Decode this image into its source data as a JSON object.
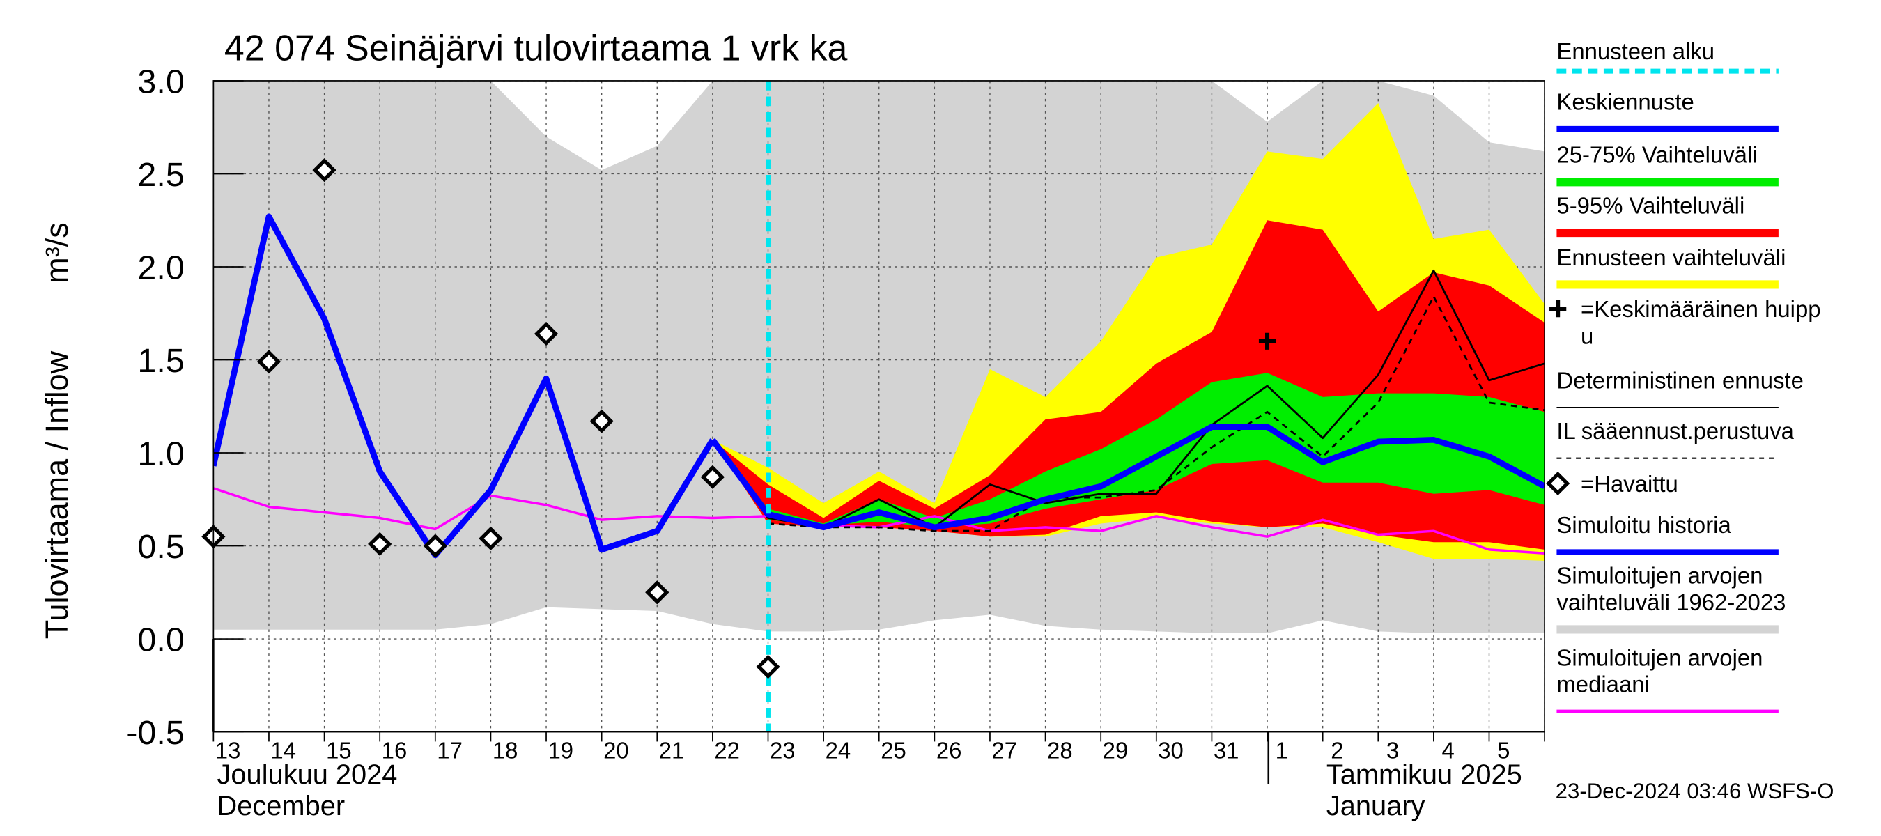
{
  "chart_data": {
    "type": "line",
    "title": "42 074 Seinäjärvi tulovirtaama 1 vrk ka",
    "y_label": "Tulovirtaama / Inflow",
    "y_unit": "m³/s",
    "footer": "23-Dec-2024 03:46 WSFS-O",
    "month_labels": [
      {
        "fi": "Joulukuu  2024",
        "en": "December"
      },
      {
        "fi": "Tammikuu  2025",
        "en": "January"
      }
    ],
    "categories": [
      "13",
      "14",
      "15",
      "16",
      "17",
      "18",
      "19",
      "20",
      "21",
      "22",
      "23",
      "24",
      "25",
      "26",
      "27",
      "28",
      "29",
      "30",
      "31",
      "1",
      "2",
      "3",
      "4",
      "5",
      null
    ],
    "ylim": [
      -0.5,
      3.0
    ],
    "yticks": [
      -0.5,
      {
        "value": 0,
        "label": "0.0"
      },
      0.5,
      {
        "value": 1,
        "label": "1.0"
      },
      1.5,
      {
        "value": 2,
        "label": "2.0"
      },
      2.5,
      {
        "value": 3,
        "label": "3.0"
      }
    ],
    "grid": true,
    "forecast_start": {
      "name": "Ennusteen alku",
      "color": "#00e5ee",
      "at": 10
    },
    "series": [
      {
        "name": [
          "Keskiennuste"
        ],
        "kind": "line",
        "color": "#0000ff",
        "width": 5,
        "values": [
          null,
          null,
          null,
          null,
          null,
          null,
          null,
          null,
          null,
          1.07,
          0.67,
          0.6,
          0.68,
          0.6,
          0.65,
          0.75,
          0.82,
          0.98,
          1.14,
          1.14,
          0.95,
          1.06,
          1.07,
          0.98,
          0.82
        ]
      },
      {
        "name": [
          "25-75% Vaihteluväli"
        ],
        "kind": "band",
        "color": "#00ee00",
        "upper": [
          null,
          null,
          null,
          null,
          null,
          null,
          null,
          null,
          null,
          1.07,
          0.7,
          0.62,
          0.75,
          0.65,
          0.75,
          0.9,
          1.02,
          1.18,
          1.38,
          1.43,
          1.3,
          1.32,
          1.32,
          1.3,
          1.22
        ],
        "lower": [
          null,
          null,
          null,
          null,
          null,
          null,
          null,
          null,
          null,
          1.07,
          0.64,
          0.61,
          0.63,
          0.6,
          0.62,
          0.7,
          0.75,
          0.8,
          0.94,
          0.96,
          0.84,
          0.84,
          0.78,
          0.8,
          0.72
        ]
      },
      {
        "name": [
          "5-95% Vaihteluväli"
        ],
        "kind": "band",
        "color": "#ff0000",
        "upper": [
          null,
          null,
          null,
          null,
          null,
          null,
          null,
          null,
          null,
          1.07,
          0.83,
          0.65,
          0.85,
          0.7,
          0.88,
          1.18,
          1.22,
          1.48,
          1.65,
          2.25,
          2.2,
          1.76,
          1.97,
          1.9,
          1.7
        ],
        "lower": [
          null,
          null,
          null,
          null,
          null,
          null,
          null,
          null,
          null,
          1.07,
          0.62,
          0.6,
          0.6,
          0.58,
          0.55,
          0.56,
          0.66,
          0.68,
          0.63,
          0.6,
          0.62,
          0.56,
          0.52,
          0.52,
          0.48
        ]
      },
      {
        "name": [
          "Ennusteen vaihteluväli"
        ],
        "kind": "band",
        "color": "#ffff00",
        "upper": [
          null,
          null,
          null,
          null,
          null,
          null,
          null,
          null,
          null,
          1.07,
          0.92,
          0.73,
          0.9,
          0.73,
          1.45,
          1.3,
          1.6,
          2.05,
          2.12,
          2.62,
          2.58,
          2.88,
          2.15,
          2.2,
          1.8
        ],
        "lower": [
          null,
          null,
          null,
          null,
          null,
          null,
          null,
          null,
          null,
          1.07,
          0.62,
          0.6,
          0.6,
          0.58,
          0.55,
          0.55,
          0.62,
          0.65,
          0.62,
          0.6,
          0.6,
          0.52,
          0.43,
          0.43,
          0.42
        ]
      },
      {
        "name": [
          "=Keskimääräinen huipp",
          "u"
        ],
        "kind": "plus",
        "color": "#000000",
        "values": [
          null,
          null,
          null,
          null,
          null,
          null,
          null,
          null,
          null,
          null,
          null,
          null,
          null,
          null,
          null,
          null,
          null,
          null,
          null,
          1.6,
          null,
          null,
          null,
          null,
          null
        ]
      },
      {
        "name": [
          "Deterministinen ennuste"
        ],
        "kind": "line",
        "color": "#000000",
        "width": 1.6,
        "values": [
          null,
          null,
          null,
          null,
          null,
          null,
          null,
          null,
          null,
          1.07,
          0.65,
          0.6,
          0.75,
          0.6,
          0.83,
          0.73,
          0.78,
          0.78,
          1.15,
          1.36,
          1.08,
          1.42,
          1.98,
          1.39,
          1.48
        ]
      },
      {
        "name": [
          "IL sääennust.perustuva"
        ],
        "kind": "line",
        "color": "#000000",
        "width": 1.6,
        "dashed": true,
        "values": [
          null,
          null,
          null,
          null,
          null,
          null,
          null,
          null,
          null,
          null,
          0.62,
          0.6,
          0.6,
          0.58,
          0.58,
          0.76,
          0.76,
          0.8,
          1.03,
          1.22,
          0.98,
          1.27,
          1.84,
          1.27,
          1.23
        ]
      },
      {
        "name": [
          "=Havaittu"
        ],
        "kind": "points",
        "color": "#000000",
        "values": [
          0.55,
          1.49,
          2.52,
          0.51,
          0.5,
          0.54,
          1.64,
          1.17,
          0.25,
          0.87,
          -0.15,
          null,
          null,
          null,
          null,
          null,
          null,
          null,
          null,
          null,
          null,
          null,
          null,
          null,
          null
        ]
      },
      {
        "name": [
          "Simuloitu historia"
        ],
        "kind": "line",
        "color": "#0000ff",
        "width": 5,
        "values": [
          0.93,
          2.27,
          1.72,
          0.9,
          0.45,
          0.8,
          1.4,
          0.48,
          0.58,
          1.07,
          null,
          null,
          null,
          null,
          null,
          null,
          null,
          null,
          null,
          null,
          null,
          null,
          null,
          null,
          null
        ]
      },
      {
        "name": [
          "Simuloitujen arvojen",
          "vaihteluväli 1962-2023"
        ],
        "kind": "band",
        "color": "#d3d3d3",
        "upper": [
          3.0,
          3.0,
          3.0,
          3.0,
          3.0,
          3.0,
          2.7,
          2.52,
          2.65,
          3.0,
          3.0,
          3.0,
          3.0,
          3.0,
          3.0,
          3.0,
          3.0,
          3.0,
          3.0,
          2.78,
          3.0,
          3.0,
          2.92,
          2.67,
          2.62
        ],
        "lower": [
          0.05,
          0.05,
          0.05,
          0.05,
          0.05,
          0.08,
          0.17,
          0.16,
          0.15,
          0.08,
          0.04,
          0.04,
          0.05,
          0.1,
          0.13,
          0.07,
          0.05,
          0.04,
          0.03,
          0.03,
          0.1,
          0.04,
          0.03,
          0.03,
          0.03
        ]
      },
      {
        "name": [
          "Simuloitujen arvojen",
          "mediaani"
        ],
        "kind": "line",
        "color": "#ff00ff",
        "width": 2,
        "values": [
          0.81,
          0.71,
          0.68,
          0.65,
          0.59,
          0.77,
          0.72,
          0.64,
          0.66,
          0.65,
          0.66,
          0.61,
          0.6,
          0.66,
          0.58,
          0.6,
          0.58,
          0.66,
          0.6,
          0.55,
          0.64,
          0.56,
          0.58,
          0.48,
          0.46
        ]
      }
    ]
  }
}
